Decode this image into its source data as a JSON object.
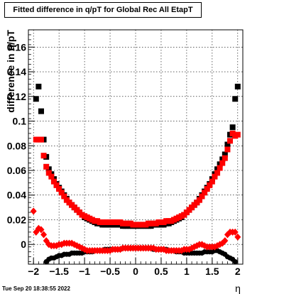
{
  "chart_data": {
    "type": "scatter",
    "title": "Fitted difference in q/pT for Global Rec All EtapT",
    "xlabel": "η",
    "ylabel": "difference in q/pT",
    "xlim": [
      -2.1,
      2.1
    ],
    "ylim": [
      -0.016,
      0.174
    ],
    "grid": true,
    "x_ticks": [
      "−2",
      "−1.5",
      "−1",
      "−0.5",
      "0",
      "0.5",
      "1",
      "1.5",
      "2"
    ],
    "y_ticks": [
      "0",
      "0.02",
      "0.04",
      "0.06",
      "0.08",
      "0.1",
      "0.12",
      "0.14",
      "0.16"
    ],
    "timestamp": "Tue Sep 20 18:38:55 2022",
    "series": [
      {
        "marker": "square",
        "role": "width",
        "color": "#000000",
        "x": [
          -1.95,
          -1.9,
          -1.85,
          -1.8,
          -1.75,
          -1.7,
          -1.65,
          -1.6,
          -1.55,
          -1.5,
          -1.45,
          -1.4,
          -1.35,
          -1.3,
          -1.25,
          -1.2,
          -1.15,
          -1.1,
          -1.05,
          -1.0,
          -0.95,
          -0.9,
          -0.85,
          -0.8,
          -0.75,
          -0.7,
          -0.65,
          -0.6,
          -0.55,
          -0.5,
          -0.45,
          -0.4,
          -0.35,
          -0.3,
          -0.25,
          -0.2,
          -0.15,
          -0.1,
          -0.05,
          0.0,
          0.05,
          0.1,
          0.15,
          0.2,
          0.25,
          0.3,
          0.35,
          0.4,
          0.45,
          0.5,
          0.55,
          0.6,
          0.65,
          0.7,
          0.75,
          0.8,
          0.85,
          0.9,
          0.95,
          1.0,
          1.05,
          1.1,
          1.15,
          1.2,
          1.25,
          1.3,
          1.35,
          1.4,
          1.45,
          1.5,
          1.55,
          1.6,
          1.65,
          1.7,
          1.75,
          1.8,
          1.85,
          1.9,
          1.95,
          2.0
        ],
        "y": [
          0.118,
          0.128,
          0.108,
          0.085,
          0.071,
          0.061,
          0.057,
          0.053,
          0.049,
          0.046,
          0.043,
          0.04,
          0.037,
          0.034,
          0.032,
          0.03,
          0.028,
          0.026,
          0.024,
          0.022,
          0.021,
          0.02,
          0.019,
          0.018,
          0.017,
          0.017,
          0.016,
          0.016,
          0.016,
          0.016,
          0.016,
          0.016,
          0.016,
          0.016,
          0.015,
          0.015,
          0.015,
          0.015,
          0.015,
          0.015,
          0.015,
          0.015,
          0.015,
          0.015,
          0.015,
          0.015,
          0.016,
          0.016,
          0.016,
          0.016,
          0.016,
          0.017,
          0.017,
          0.018,
          0.019,
          0.02,
          0.021,
          0.022,
          0.024,
          0.026,
          0.028,
          0.03,
          0.032,
          0.034,
          0.037,
          0.04,
          0.043,
          0.046,
          0.049,
          0.053,
          0.057,
          0.061,
          0.065,
          0.069,
          0.073,
          0.081,
          0.089,
          0.095,
          0.118,
          0.128
        ]
      },
      {
        "marker": "square",
        "role": "width",
        "color": "#ff0000",
        "x": [
          -1.95,
          -1.9,
          -1.85,
          -1.8,
          -1.75,
          -1.7,
          -1.65,
          -1.6,
          -1.55,
          -1.5,
          -1.45,
          -1.4,
          -1.35,
          -1.3,
          -1.25,
          -1.2,
          -1.15,
          -1.1,
          -1.05,
          -1.0,
          -0.95,
          -0.9,
          -0.85,
          -0.8,
          -0.75,
          -0.7,
          -0.65,
          -0.6,
          -0.55,
          -0.5,
          -0.45,
          -0.4,
          -0.35,
          -0.3,
          -0.25,
          -0.2,
          -0.15,
          -0.1,
          -0.05,
          0.0,
          0.05,
          0.1,
          0.15,
          0.2,
          0.25,
          0.3,
          0.35,
          0.4,
          0.45,
          0.5,
          0.55,
          0.6,
          0.65,
          0.7,
          0.75,
          0.8,
          0.85,
          0.9,
          0.95,
          1.0,
          1.05,
          1.1,
          1.15,
          1.2,
          1.25,
          1.3,
          1.35,
          1.4,
          1.45,
          1.5,
          1.55,
          1.6,
          1.65,
          1.7,
          1.75,
          1.8,
          1.85,
          1.9,
          1.95,
          2.0
        ],
        "y": [
          0.085,
          0.085,
          0.085,
          0.072,
          0.063,
          0.058,
          0.055,
          0.051,
          0.048,
          0.045,
          0.042,
          0.039,
          0.036,
          0.034,
          0.032,
          0.03,
          0.028,
          0.026,
          0.024,
          0.023,
          0.022,
          0.021,
          0.02,
          0.019,
          0.019,
          0.018,
          0.018,
          0.018,
          0.018,
          0.018,
          0.018,
          0.018,
          0.018,
          0.018,
          0.017,
          0.017,
          0.017,
          0.017,
          0.016,
          0.016,
          0.016,
          0.016,
          0.016,
          0.016,
          0.017,
          0.017,
          0.017,
          0.017,
          0.018,
          0.018,
          0.018,
          0.019,
          0.019,
          0.019,
          0.02,
          0.021,
          0.022,
          0.023,
          0.024,
          0.026,
          0.028,
          0.03,
          0.032,
          0.034,
          0.036,
          0.039,
          0.042,
          0.045,
          0.048,
          0.051,
          0.055,
          0.058,
          0.062,
          0.066,
          0.07,
          0.077,
          0.084,
          0.09,
          0.088,
          0.089
        ]
      },
      {
        "marker": "circle",
        "role": "mean",
        "color": "#000000",
        "x": [
          -1.75,
          -1.7,
          -1.65,
          -1.6,
          -1.55,
          -1.5,
          -1.45,
          -1.4,
          -1.35,
          -1.3,
          -1.25,
          -1.2,
          -1.15,
          -1.1,
          -1.05,
          -1.0,
          -0.95,
          -0.9,
          -0.85,
          -0.8,
          -0.75,
          -0.7,
          -0.65,
          -0.6,
          -0.55,
          -0.5,
          -0.45,
          -0.4,
          -0.35,
          -0.3,
          -0.25,
          -0.2,
          -0.15,
          -0.1,
          -0.05,
          0.0,
          0.05,
          0.1,
          0.15,
          0.2,
          0.25,
          0.3,
          0.35,
          0.4,
          0.45,
          0.5,
          0.55,
          0.6,
          0.65,
          0.7,
          0.75,
          0.8,
          0.85,
          0.9,
          0.95,
          1.0,
          1.05,
          1.1,
          1.15,
          1.2,
          1.25,
          1.3,
          1.35,
          1.4,
          1.45,
          1.5,
          1.55,
          1.6,
          1.65,
          1.7,
          1.75,
          1.8,
          1.85,
          1.9,
          1.95
        ],
        "y": [
          -0.014,
          -0.012,
          -0.011,
          -0.011,
          -0.01,
          -0.009,
          -0.009,
          -0.008,
          -0.008,
          -0.008,
          -0.007,
          -0.007,
          -0.007,
          -0.007,
          -0.007,
          -0.006,
          -0.006,
          -0.006,
          -0.006,
          -0.005,
          -0.005,
          -0.005,
          -0.005,
          -0.004,
          -0.004,
          -0.004,
          -0.004,
          -0.004,
          -0.004,
          -0.004,
          -0.003,
          -0.003,
          -0.003,
          -0.003,
          -0.003,
          -0.003,
          -0.003,
          -0.003,
          -0.003,
          -0.003,
          -0.003,
          -0.003,
          -0.004,
          -0.004,
          -0.004,
          -0.004,
          -0.004,
          -0.004,
          -0.005,
          -0.005,
          -0.005,
          -0.006,
          -0.006,
          -0.006,
          -0.007,
          -0.007,
          -0.007,
          -0.007,
          -0.007,
          -0.007,
          -0.007,
          -0.007,
          -0.006,
          -0.006,
          -0.006,
          -0.006,
          -0.005,
          -0.005,
          -0.006,
          -0.007,
          -0.008,
          -0.01,
          -0.011,
          -0.012,
          -0.014
        ]
      },
      {
        "marker": "diamond",
        "role": "mean",
        "color": "#ff0000",
        "x": [
          -2.0,
          -1.95,
          -1.9,
          -1.85,
          -1.8,
          -1.75,
          -1.7,
          -1.65,
          -1.6,
          -1.55,
          -1.5,
          -1.45,
          -1.4,
          -1.35,
          -1.3,
          -1.25,
          -1.2,
          -1.15,
          -1.1,
          -1.05,
          -1.0,
          -0.95,
          -0.9,
          -0.85,
          -0.8,
          -0.75,
          -0.7,
          -0.65,
          -0.6,
          -0.55,
          -0.5,
          -0.45,
          -0.4,
          -0.35,
          -0.3,
          -0.25,
          -0.2,
          -0.15,
          -0.1,
          -0.05,
          0.0,
          0.05,
          0.1,
          0.15,
          0.2,
          0.25,
          0.3,
          0.35,
          0.4,
          0.45,
          0.5,
          0.55,
          0.6,
          0.65,
          0.7,
          0.75,
          0.8,
          0.85,
          0.9,
          0.95,
          1.0,
          1.05,
          1.1,
          1.15,
          1.2,
          1.25,
          1.3,
          1.35,
          1.4,
          1.45,
          1.5,
          1.55,
          1.6,
          1.65,
          1.7,
          1.75,
          1.8,
          1.85,
          1.9,
          1.95,
          2.0
        ],
        "y": [
          0.027,
          0.01,
          0.013,
          0.012,
          0.008,
          0.003,
          0.0,
          -0.001,
          -0.001,
          -0.001,
          0.0,
          0.0,
          0.001,
          0.001,
          0.001,
          0.001,
          0.0,
          -0.001,
          -0.002,
          -0.003,
          -0.004,
          -0.005,
          -0.005,
          -0.005,
          -0.005,
          -0.005,
          -0.005,
          -0.005,
          -0.005,
          -0.005,
          -0.005,
          -0.004,
          -0.004,
          -0.004,
          -0.004,
          -0.003,
          -0.003,
          -0.003,
          -0.003,
          -0.003,
          -0.003,
          -0.003,
          -0.003,
          -0.003,
          -0.003,
          -0.003,
          -0.003,
          -0.003,
          -0.004,
          -0.004,
          -0.004,
          -0.004,
          -0.005,
          -0.005,
          -0.005,
          -0.005,
          -0.005,
          -0.005,
          -0.005,
          -0.004,
          -0.004,
          -0.004,
          -0.003,
          -0.002,
          -0.001,
          0.0,
          0.0,
          -0.001,
          -0.002,
          -0.002,
          -0.002,
          -0.002,
          -0.001,
          0.0,
          0.001,
          0.003,
          0.008,
          0.01,
          0.01,
          0.01,
          0.006
        ]
      }
    ]
  }
}
